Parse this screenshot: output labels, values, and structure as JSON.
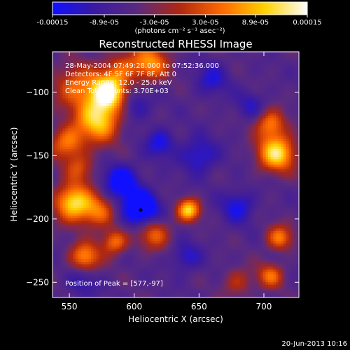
{
  "colorbar": {
    "tick_labels": [
      "-0.00015",
      "-8.9e-05",
      "-3.0e-05",
      "3.0e-05",
      "8.9e-05",
      "0.00015"
    ],
    "tick_values": [
      -0.00015,
      -8.9e-05,
      -3e-05,
      3e-05,
      8.9e-05,
      0.00015
    ],
    "range": [
      -0.00015,
      0.00015
    ],
    "unit_label": "(photons cm⁻² s⁻¹ asec⁻²)",
    "colors": [
      "#1010ff",
      "#3a1aa0",
      "#5a2a80",
      "#b02810",
      "#ff6a00",
      "#ffd200",
      "#ffffff"
    ]
  },
  "chart_data": {
    "type": "heatmap",
    "title": "Reconstructed RHESSI Image",
    "xlabel": "Heliocentric X (arcsec)",
    "ylabel": "Heliocentric Y (arcsec)",
    "xlim": [
      537,
      727
    ],
    "ylim": [
      -262,
      -68
    ],
    "x_ticks": [
      550,
      600,
      650,
      700
    ],
    "x_tick_labels": [
      "550",
      "600",
      "650",
      "700"
    ],
    "y_ticks": [
      -250,
      -200,
      -150,
      -100
    ],
    "y_tick_labels": [
      "−250",
      "−200",
      "−150",
      "−100"
    ],
    "annotations": [
      "28-May-2004 07:49:28.000 to 07:52:36.000",
      "Detectors: 4F 5F 6F 7F 8F, Att 0",
      "Energy Range: 12.0 - 25.0 keV",
      "Clean     Total counts: 3.70E+03"
    ],
    "peak_label": "Position of Peak = [577,-97]",
    "peak_position": [
      577,
      -97
    ],
    "marker_position": [
      605,
      -193
    ],
    "blobs": [
      {
        "x": 580,
        "y": -100,
        "a": 1.6,
        "s": 10
      },
      {
        "x": 572,
        "y": -122,
        "a": 1.3,
        "s": 12
      },
      {
        "x": 555,
        "y": -95,
        "a": 0.8,
        "s": 12
      },
      {
        "x": 548,
        "y": -140,
        "a": 0.9,
        "s": 9
      },
      {
        "x": 558,
        "y": -160,
        "a": 0.6,
        "s": 8
      },
      {
        "x": 553,
        "y": -187,
        "a": 1.4,
        "s": 10
      },
      {
        "x": 572,
        "y": -195,
        "a": 0.8,
        "s": 9
      },
      {
        "x": 612,
        "y": -77,
        "a": 1.0,
        "s": 10
      },
      {
        "x": 590,
        "y": -80,
        "a": 0.6,
        "s": 9
      },
      {
        "x": 642,
        "y": -193,
        "a": 1.3,
        "s": 6
      },
      {
        "x": 562,
        "y": -230,
        "a": 1.0,
        "s": 8
      },
      {
        "x": 585,
        "y": -218,
        "a": 0.9,
        "s": 7
      },
      {
        "x": 615,
        "y": -211,
        "a": 0.8,
        "s": 9
      },
      {
        "x": 710,
        "y": -148,
        "a": 1.4,
        "s": 10
      },
      {
        "x": 705,
        "y": -125,
        "a": 0.9,
        "s": 8
      },
      {
        "x": 712,
        "y": -215,
        "a": 0.9,
        "s": 7
      },
      {
        "x": 705,
        "y": -245,
        "a": 0.8,
        "s": 7
      },
      {
        "x": 680,
        "y": -250,
        "a": 0.5,
        "s": 8
      },
      {
        "x": 605,
        "y": -192,
        "a": -1.2,
        "s": 10
      },
      {
        "x": 590,
        "y": -170,
        "a": -0.9,
        "s": 9
      },
      {
        "x": 600,
        "y": -110,
        "a": -0.5,
        "s": 9
      },
      {
        "x": 650,
        "y": -150,
        "a": -0.6,
        "s": 10
      },
      {
        "x": 660,
        "y": -90,
        "a": -0.5,
        "s": 9
      },
      {
        "x": 640,
        "y": -230,
        "a": -0.5,
        "s": 8
      },
      {
        "x": 680,
        "y": -190,
        "a": -0.6,
        "s": 9
      },
      {
        "x": 690,
        "y": -110,
        "a": -0.4,
        "s": 8
      },
      {
        "x": 620,
        "y": -140,
        "a": -0.6,
        "s": 8
      },
      {
        "x": 560,
        "y": -250,
        "a": -0.4,
        "s": 8
      }
    ]
  },
  "timestamp": "20-Jun-2013 10:16"
}
